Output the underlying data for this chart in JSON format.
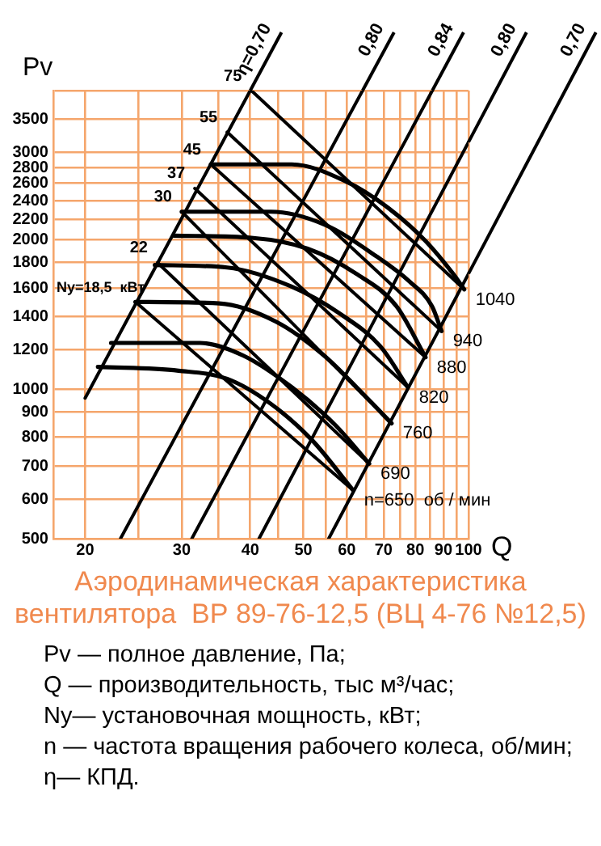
{
  "chart_data": {
    "type": "line",
    "title": "Аэродинамическая характеристика вентилятора  ВР 89-76-12,5 (ВЦ 4-76 №12,5)",
    "xlabel": "Q",
    "ylabel": "Pv",
    "log": "xy",
    "grid": true,
    "legend": false,
    "marker": "none",
    "line_style": "solid",
    "xlim": [
      17.5,
      100
    ],
    "ylim": [
      500,
      4000
    ],
    "xticks": [
      20,
      {
        "value": 25,
        "label": null
      },
      30,
      {
        "value": 35,
        "label": null
      },
      40,
      {
        "value": 45,
        "label": null
      },
      50,
      {
        "value": 55,
        "label": null
      },
      60,
      {
        "value": 65,
        "label": null
      },
      70,
      {
        "value": 75,
        "label": null
      },
      80,
      {
        "value": 85,
        "label": null
      },
      90,
      {
        "value": 95,
        "label": null
      },
      100
    ],
    "yticks": [
      500,
      600,
      700,
      800,
      900,
      1000,
      1200,
      1400,
      1600,
      1800,
      2000,
      2200,
      2400,
      2600,
      2800,
      3000,
      3500,
      {
        "value": 4000,
        "label": null
      }
    ],
    "series": [
      {
        "name": "η=0,70",
        "color": "#000000",
        "x": [
          20,
          40
        ],
        "values": [
          960,
          4000
        ]
      },
      {
        "name": "0,80",
        "color": "#000000",
        "x": [
          23.2,
          64.1
        ],
        "values": [
          500,
          4000
        ]
      },
      {
        "name": "0,84",
        "color": "#000000",
        "x": [
          31.3,
          85.9
        ],
        "values": [
          500,
          4000
        ]
      },
      {
        "name": "0,80",
        "color": "#000000",
        "x": [
          41.5,
          100
        ],
        "values": [
          500,
          3150
        ]
      },
      {
        "name": "0,70",
        "color": "#000000",
        "x": [
          55.6,
          100
        ],
        "values": [
          500,
          1710
        ]
      },
      {
        "name": "75",
        "color": "#000000",
        "x": [
          40.2,
          98.2
        ],
        "values": [
          4000,
          1590
        ]
      },
      {
        "name": "55",
        "color": "#000000",
        "x": [
          36.3,
          89.3
        ],
        "values": [
          3300,
          1310
        ]
      },
      {
        "name": "45",
        "color": "#000000",
        "x": [
          33.9,
          83.5
        ],
        "values": [
          2840,
          1160
        ]
      },
      {
        "name": "37",
        "color": "#000000",
        "x": [
          31.7,
          77.5
        ],
        "values": [
          2540,
          1010
        ]
      },
      {
        "name": "30",
        "color": "#000000",
        "x": [
          30,
          72.4
        ],
        "values": [
          2280,
          854
        ]
      },
      {
        "name": "22",
        "color": "#000000",
        "x": [
          27.1,
          65.9
        ],
        "values": [
          1800,
          708
        ]
      },
      {
        "name": "Ny=18,5  кВт",
        "color": "#000000",
        "x": [
          24.7,
          61.5
        ],
        "values": [
          1500,
          627
        ]
      },
      {
        "name": "1040",
        "color": "#000000",
        "x": [
          33.9,
          47.6,
          59.5,
          71.4,
          83.5,
          93.7,
          98.2
        ],
        "values": [
          2840,
          2840,
          2630,
          2320,
          1990,
          1710,
          1590
        ]
      },
      {
        "name": "940",
        "color": "#000000",
        "x": [
          30,
          43.6,
          54.5,
          68.1,
          78,
          85.8,
          89.3
        ],
        "values": [
          2280,
          2280,
          2150,
          1850,
          1650,
          1470,
          1310
        ]
      },
      {
        "name": "880",
        "color": "#000000",
        "x": [
          29,
          40.2,
          50.9,
          62.4,
          73.9,
          83.5
        ],
        "values": [
          2040,
          2020,
          1920,
          1710,
          1470,
          1160
        ]
      },
      {
        "name": "820",
        "color": "#000000",
        "x": [
          26.8,
          36.3,
          47.6,
          58.3,
          69.1,
          77.5
        ],
        "values": [
          1780,
          1760,
          1610,
          1420,
          1220,
          1010
        ]
      },
      {
        "name": "760",
        "color": "#000000",
        "x": [
          24.7,
          35.1,
          44.5,
          54.5,
          64.6,
          72.4
        ],
        "values": [
          1500,
          1490,
          1370,
          1170,
          972,
          854
        ]
      },
      {
        "name": "690",
        "color": "#000000",
        "x": [
          22.3,
          32.4,
          38.8,
          47.6,
          57.1,
          65.9
        ],
        "values": [
          1240,
          1240,
          1170,
          1010,
          848,
          708
        ]
      },
      {
        "name": "n=650  об / мин",
        "color": "#000000",
        "x": [
          21.1,
          29.6,
          36.3,
          43.6,
          52,
          61.5
        ],
        "values": [
          1110,
          1090,
          1050,
          935,
          787,
          627
        ]
      }
    ],
    "annotations": [
      "Pv — полное давление, Па;",
      "Q  — производительность, тыс м³/час;",
      "Ny— установочная мощность, кВт;",
      "n — частота вращения рабочего колеса,  об/мин;",
      "η— КПД."
    ]
  }
}
